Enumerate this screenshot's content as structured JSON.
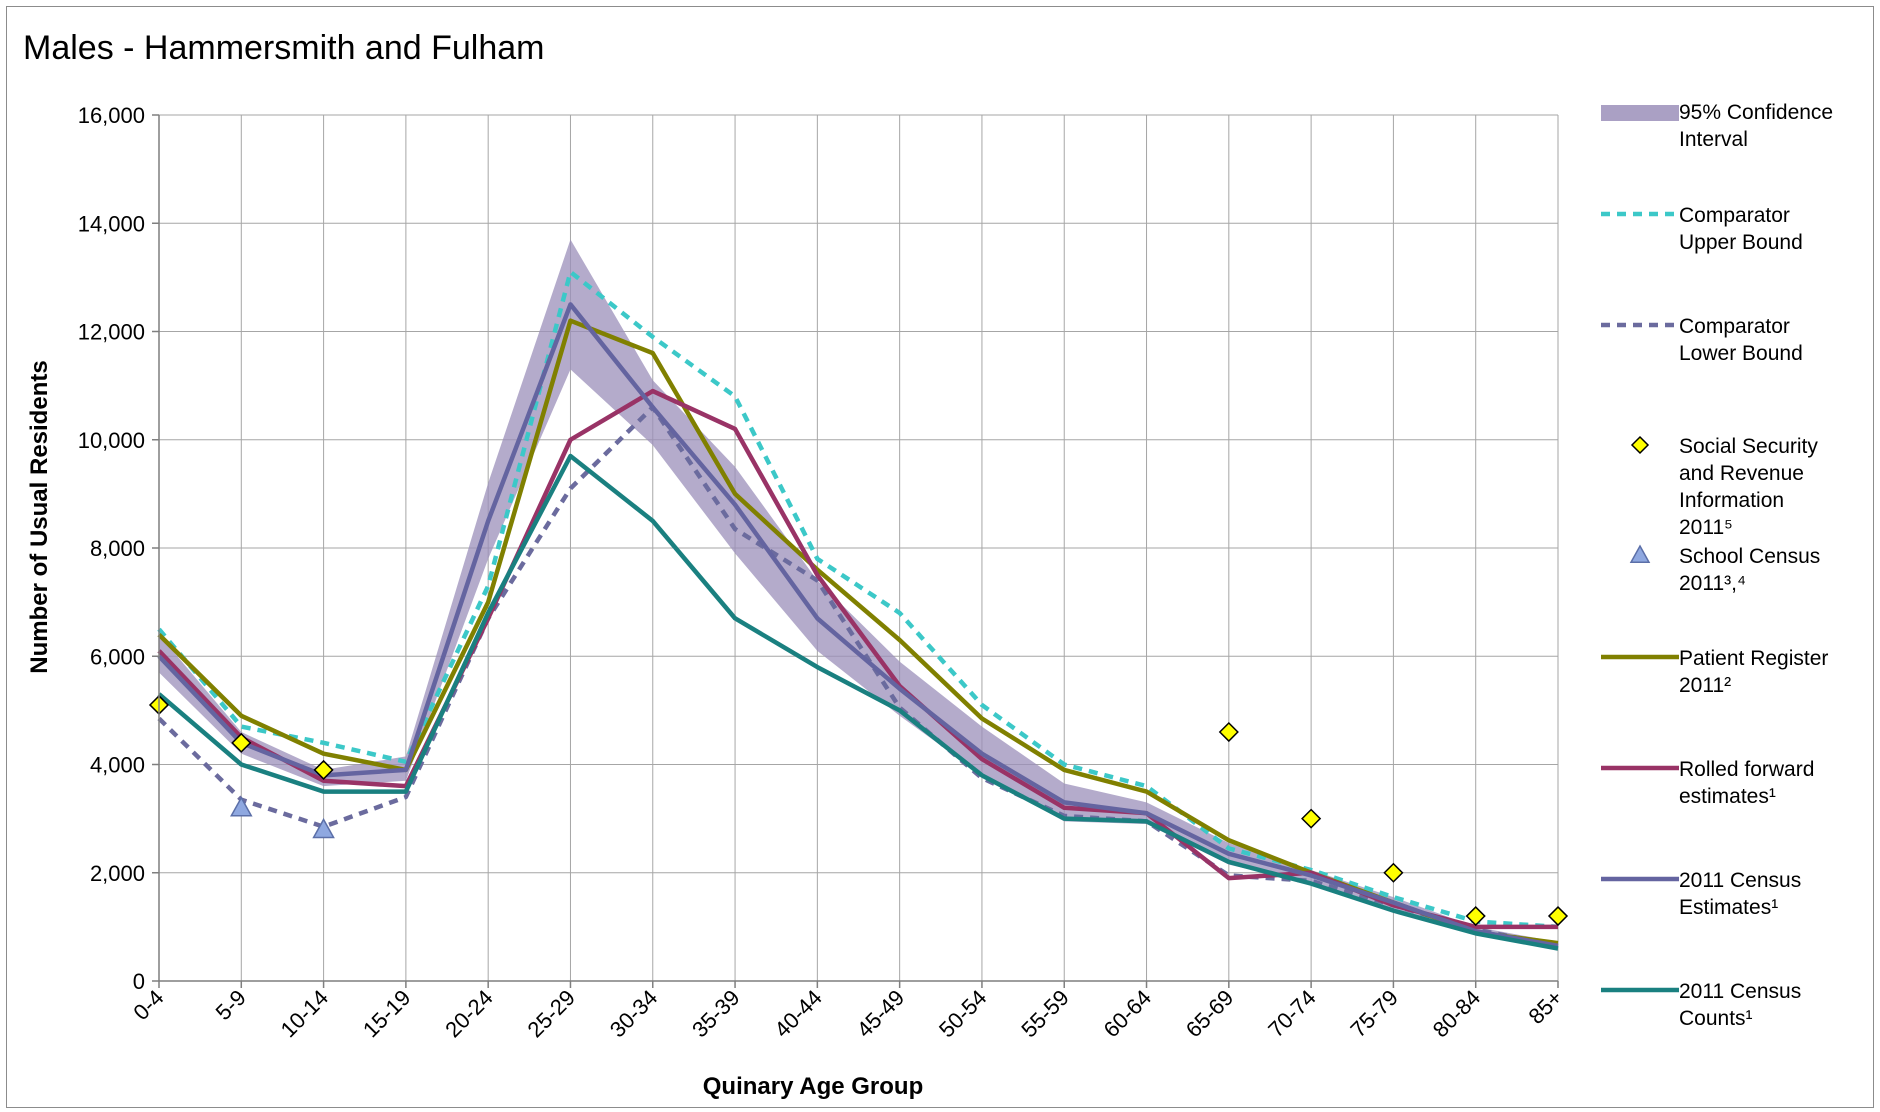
{
  "chart_data": {
    "type": "line",
    "title": "Males - Hammersmith and Fulham",
    "xlabel": "Quinary Age Group",
    "ylabel": "Number of Usual Residents",
    "ylim": [
      0,
      16000
    ],
    "yticks": [
      0,
      2000,
      4000,
      6000,
      8000,
      10000,
      12000,
      14000,
      16000
    ],
    "ytick_labels": [
      "0",
      "2,000",
      "4,000",
      "6,000",
      "8,000",
      "10,000",
      "12,000",
      "14,000",
      "16,000"
    ],
    "grid": true,
    "legend_position": "right",
    "categories": [
      "0-4",
      "5-9",
      "10-14",
      "15-19",
      "20-24",
      "25-29",
      "30-34",
      "35-39",
      "40-44",
      "45-49",
      "50-54",
      "55-59",
      "60-64",
      "65-69",
      "70-74",
      "75-79",
      "80-84",
      "85+"
    ],
    "band": {
      "name_lines": [
        "95% Confidence",
        "Interval"
      ],
      "color": "#9b8fba",
      "lower": [
        5700,
        4200,
        3600,
        3700,
        7800,
        11300,
        9900,
        7900,
        6100,
        4900,
        3800,
        2950,
        2900,
        2150,
        1800,
        1300,
        850,
        580
      ],
      "upper": [
        6400,
        4600,
        3900,
        4150,
        9200,
        13700,
        11100,
        9500,
        7400,
        5900,
        4700,
        3650,
        3300,
        2550,
        2050,
        1550,
        1000,
        720
      ]
    },
    "series": [
      {
        "name_lines": [
          "Comparator",
          "Upper Bound"
        ],
        "style": "dashed",
        "color": "#3cc8c8",
        "values": [
          6500,
          4700,
          4400,
          4050,
          7300,
          13100,
          11900,
          10800,
          7800,
          6800,
          5100,
          4000,
          3600,
          2450,
          2050,
          1550,
          1100,
          1000
        ]
      },
      {
        "name_lines": [
          "Comparator",
          "Lower Bound"
        ],
        "style": "dashed",
        "color": "#6b6b9e",
        "values": [
          4850,
          3350,
          2850,
          3400,
          6700,
          9100,
          10600,
          8350,
          7400,
          5050,
          3750,
          3050,
          2950,
          1950,
          1850,
          1400,
          950,
          650
        ]
      },
      {
        "name_lines": [
          "Patient Register",
          "2011²"
        ],
        "style": "solid",
        "color": "#808000",
        "values": [
          6400,
          4900,
          4200,
          3900,
          7000,
          12200,
          11600,
          9000,
          7600,
          6300,
          4850,
          3900,
          3500,
          2600,
          2000,
          1450,
          900,
          700
        ]
      },
      {
        "name_lines": [
          "Rolled forward",
          "estimates¹"
        ],
        "style": "solid",
        "color": "#993366",
        "values": [
          6100,
          4500,
          3700,
          3600,
          6700,
          10000,
          10900,
          10200,
          7500,
          5450,
          4100,
          3200,
          3100,
          1900,
          2000,
          1400,
          1000,
          1000
        ]
      },
      {
        "name_lines": [
          "2011 Census",
          "Estimates¹"
        ],
        "style": "solid",
        "color": "#6464a0",
        "values": [
          6000,
          4400,
          3800,
          3900,
          8500,
          12500,
          10600,
          8800,
          6700,
          5400,
          4200,
          3300,
          3100,
          2350,
          1950,
          1450,
          920,
          650
        ]
      },
      {
        "name_lines": [
          "2011 Census",
          "Counts¹"
        ],
        "style": "solid",
        "color": "#1a8080",
        "values": [
          5300,
          4000,
          3500,
          3500,
          6800,
          9700,
          8500,
          6700,
          5800,
          5000,
          3800,
          3000,
          2950,
          2200,
          1800,
          1300,
          880,
          600
        ]
      }
    ],
    "markers": [
      {
        "name_lines": [
          "Social Security",
          "and Revenue",
          "Information",
          "2011⁵"
        ],
        "shape": "diamond",
        "color": "#ffff00",
        "points": [
          {
            "x": "0-4",
            "y": 5100
          },
          {
            "x": "5-9",
            "y": 4400
          },
          {
            "x": "10-14",
            "y": 3900
          },
          {
            "x": "65-69",
            "y": 4600
          },
          {
            "x": "70-74",
            "y": 3000
          },
          {
            "x": "75-79",
            "y": 2000
          },
          {
            "x": "80-84",
            "y": 1200
          },
          {
            "x": "85+",
            "y": 1200
          }
        ]
      },
      {
        "name_lines": [
          "School Census",
          "2011³,⁴"
        ],
        "shape": "triangle",
        "color": "#8fa8e0",
        "points": [
          {
            "x": "5-9",
            "y": 3200
          },
          {
            "x": "10-14",
            "y": 2800
          }
        ]
      }
    ]
  }
}
